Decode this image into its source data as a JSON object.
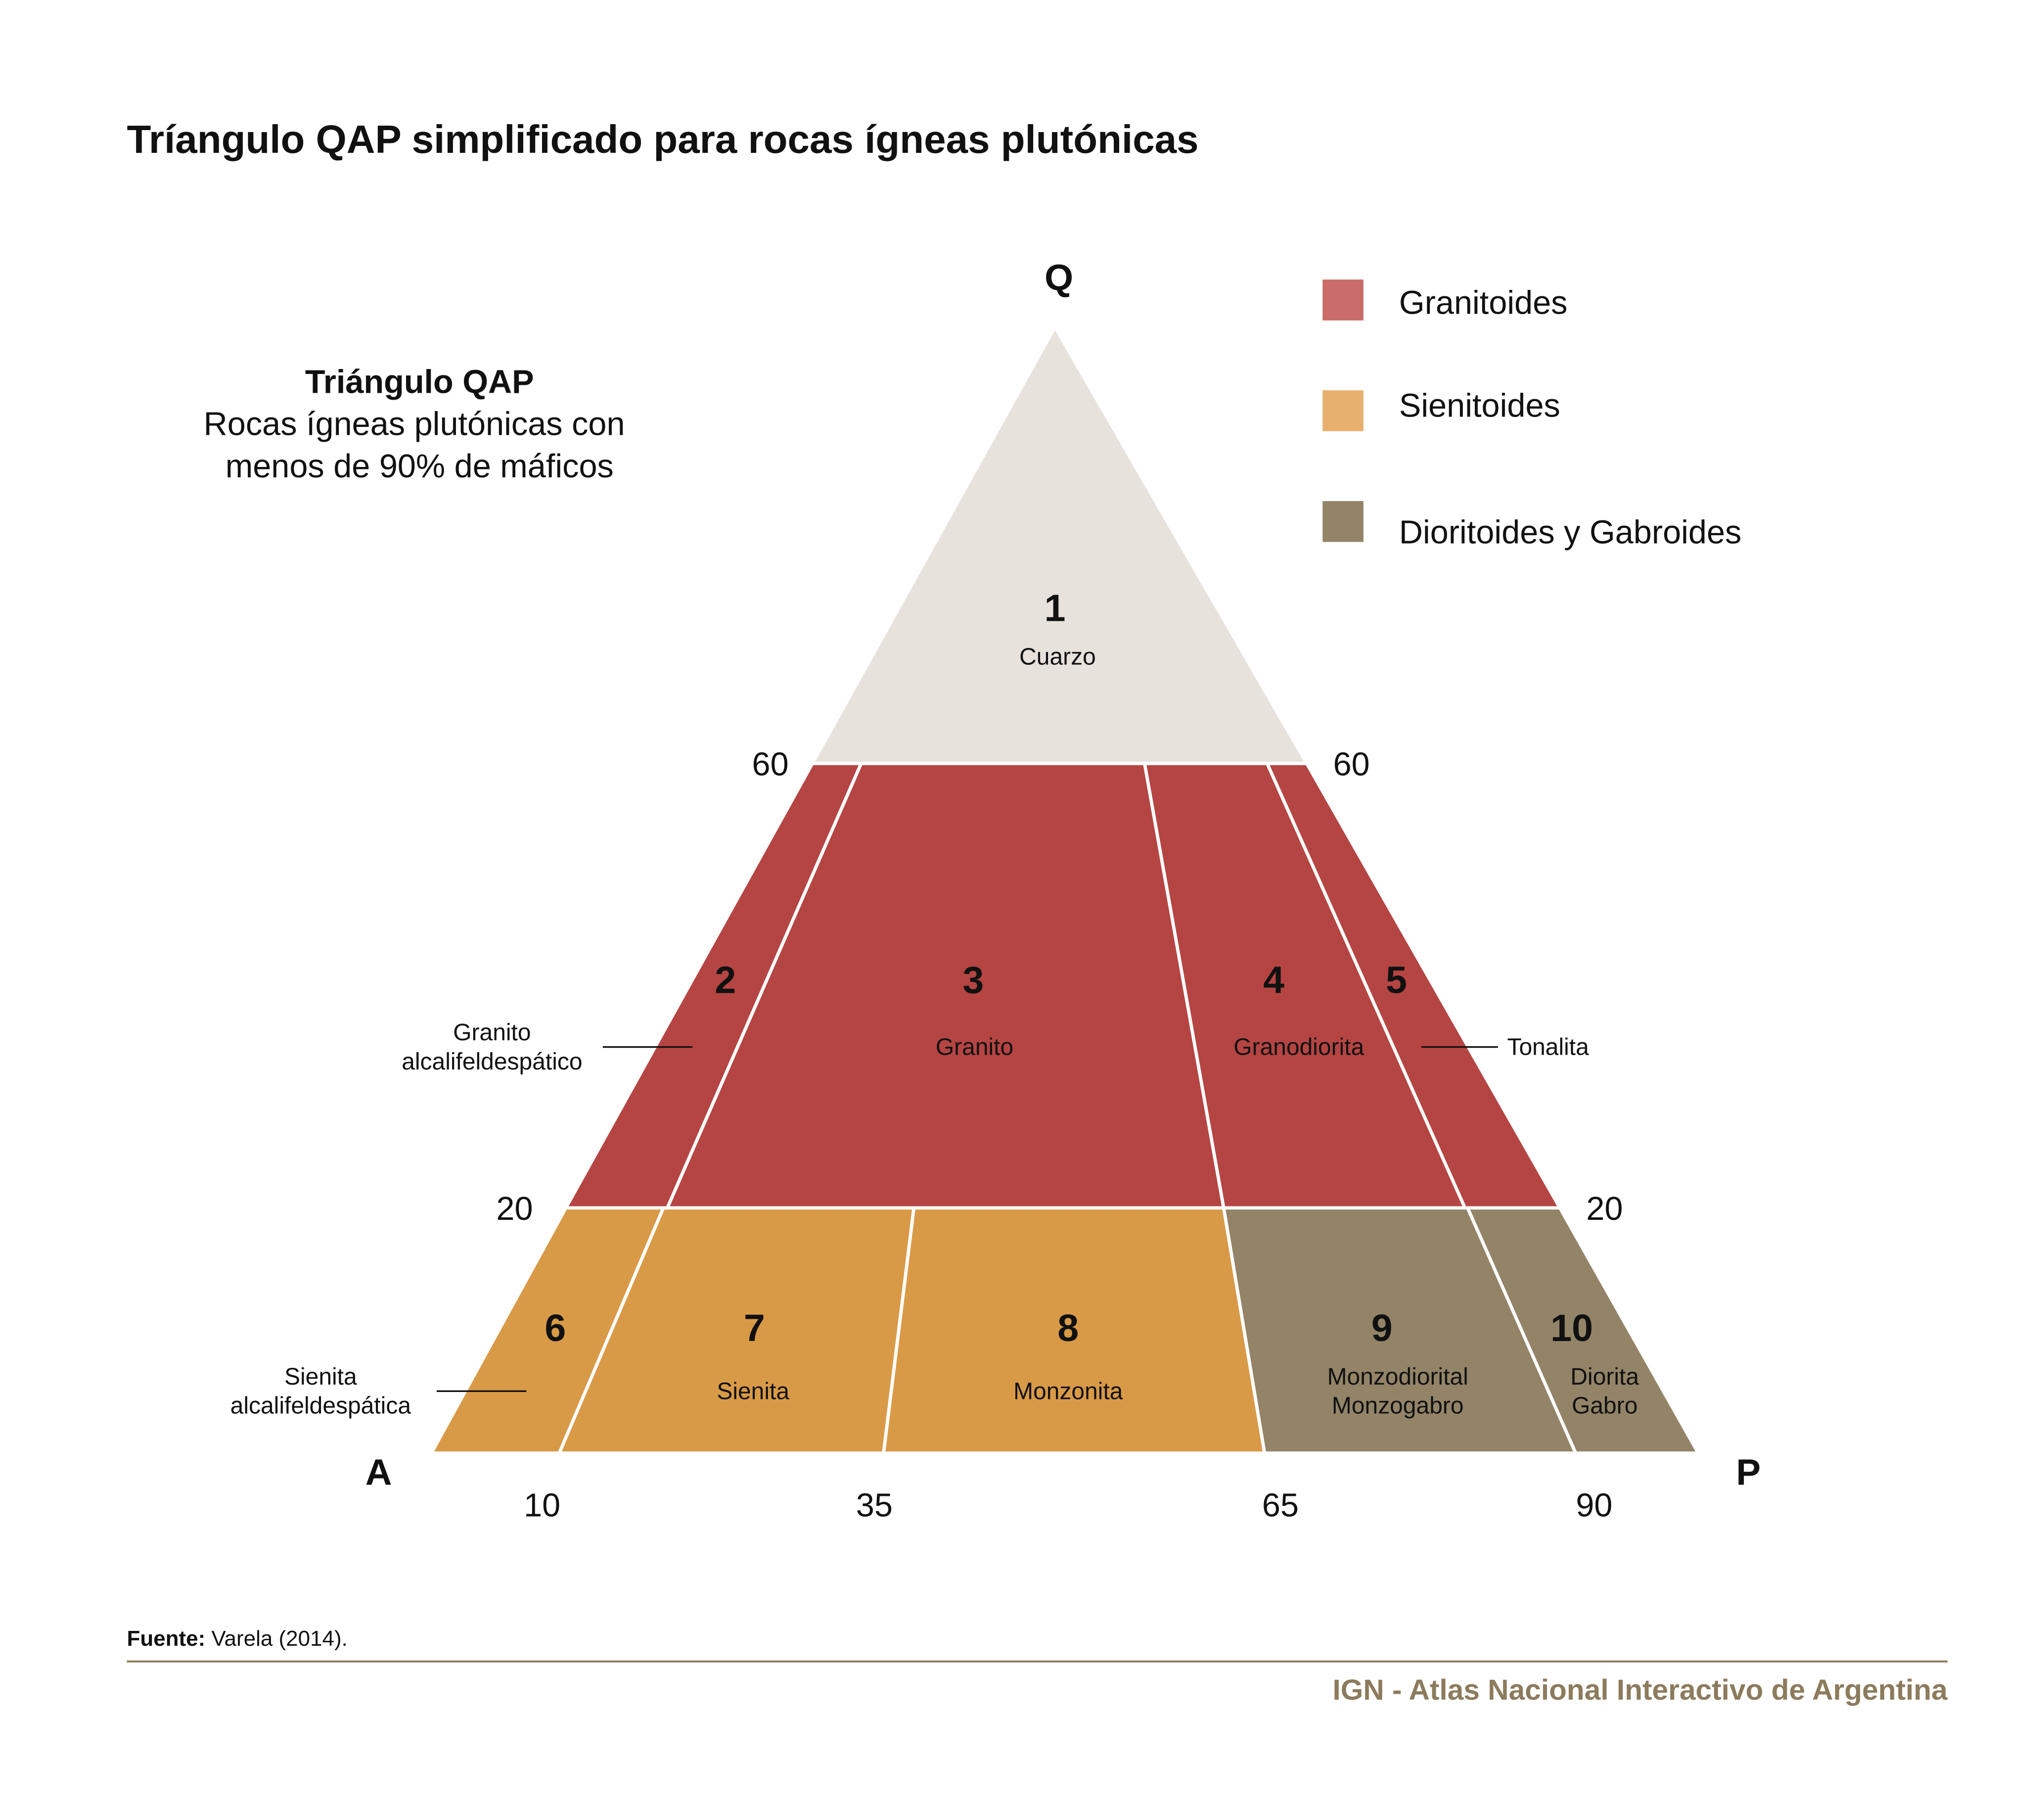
{
  "title": "Tríangulo QAP simplificado para rocas ígneas plutónicas",
  "subtitle": {
    "heading": "Triángulo QAP",
    "line1": "Rocas ígneas plutónicas con",
    "line2": "menos de 90% de máficos"
  },
  "vertices": {
    "q": "Q",
    "a": "A",
    "p": "P"
  },
  "ticks": {
    "left60": "60",
    "right60": "60",
    "left20": "20",
    "right20": "20",
    "bottom": [
      "10",
      "35",
      "65",
      "90"
    ]
  },
  "legend": [
    {
      "label": "Granitoides",
      "color": "#c96b68"
    },
    {
      "label": "Sienitoides",
      "color": "#e8b06e"
    },
    {
      "label": "Dioritoides y Gabroides",
      "color": "#938468"
    }
  ],
  "colors": {
    "cuarzo": "#e7e2dc",
    "granitoides": "#b54543",
    "sienitoides": "#d99a47",
    "dioritoides": "#938468",
    "credit": "#8c7b5c"
  },
  "fields": [
    {
      "number": "1",
      "name": "Cuarzo"
    },
    {
      "number": "2",
      "name": ""
    },
    {
      "number": "3",
      "name": "Granito"
    },
    {
      "number": "4",
      "name": "Granodiorita"
    },
    {
      "number": "5",
      "name": ""
    },
    {
      "number": "6",
      "name": ""
    },
    {
      "number": "7",
      "name": "Sienita"
    },
    {
      "number": "8",
      "name": "Monzonita"
    },
    {
      "number": "9",
      "name": "Monzodiorital",
      "name2": "Monzogabro"
    },
    {
      "number": "10",
      "name": "Diorita",
      "name2": "Gabro"
    }
  ],
  "external_labels": {
    "field2_line1": "Granito",
    "field2_line2": "alcalifeldespático",
    "field5": "Tonalita",
    "field6_line1": "Sienita",
    "field6_line2": "alcalifeldespática"
  },
  "source": {
    "label": "Fuente:",
    "text": " Varela (2014)."
  },
  "credit": "IGN - Atlas Nacional Interactivo de Argentina"
}
